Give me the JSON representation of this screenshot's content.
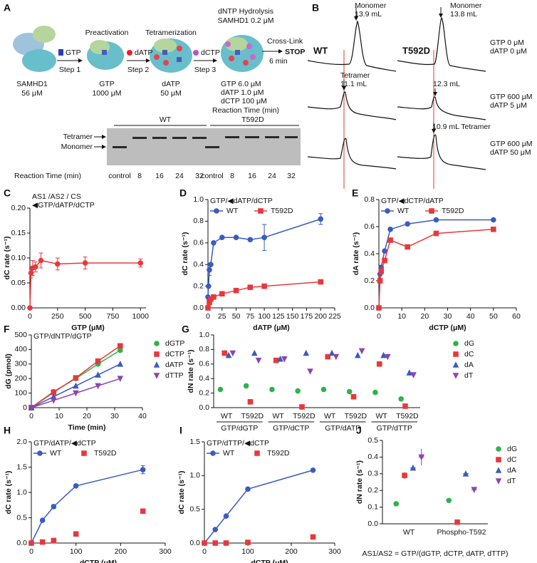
{
  "panel_a": {
    "label": "A",
    "protein": "SAMHD1",
    "protein_conc": "56 μM",
    "reagents": [
      "GTP",
      "dATP",
      "dCTP"
    ],
    "steps": [
      "Step 1",
      "Step 2",
      "Step 3"
    ],
    "preactivation": {
      "title": "Preactivation",
      "line1": "GTP",
      "line2": "1000 μM"
    },
    "tetramerization": {
      "title": "Tetramerization",
      "line1": "dATP",
      "line2": "50 μM"
    },
    "hydrolysis": {
      "title": "dNTP Hydrolysis",
      "enzyme": "SAMHD1 0.2 μM",
      "conditions": [
        "GTP  6.0 μM",
        "dATP  1.0 μM",
        "dCTP  100 μM"
      ],
      "time": "Reaction Time (min)"
    },
    "crosslink": "Cross-Link",
    "crosslink_time": "6 min",
    "stop": "STOP",
    "gel": {
      "groups": [
        "WT",
        "T592D"
      ],
      "bands": [
        "Tetramer",
        "Monomer"
      ],
      "axis_title": "Reaction Time (min)",
      "lanes": [
        "control",
        "8",
        "16",
        "24",
        "32",
        "control",
        "8",
        "16",
        "24",
        "32"
      ]
    }
  },
  "panel_b": {
    "label": "B",
    "variants": [
      "WT",
      "T592D"
    ],
    "annotations": [
      "Monomer",
      "13.9 mL",
      "Monomer",
      "13.8 mL",
      "Tetramer",
      "11.1 mL",
      "12.3 mL",
      "10.9 mL Tetramer"
    ],
    "conditions": [
      [
        "GTP  0 μM",
        "dATP  0 μM"
      ],
      [
        "GTP 600  μM",
        "dATP   5  μM"
      ],
      [
        "GTP 600 μM",
        "dATP 50 μM"
      ]
    ]
  },
  "chart_data": [
    {
      "label": "C",
      "type": "line",
      "title": "AS1 /AS2 / CS",
      "subtitle": "◀GTP/dATP/dCTP",
      "xlabel": "GTP (μM)",
      "ylabel": "dC rate (s⁻¹)",
      "xlim": [
        0,
        1050
      ],
      "xticks": [
        0,
        250,
        500,
        750,
        1000
      ],
      "ylim": [
        0,
        0.2
      ],
      "yticks": [
        {
          "value": 0,
          "label": "0.00"
        },
        0.05,
        {
          "value": 0.1,
          "label": "0.10"
        },
        {
          "value": 0.15,
          "label": "0.15"
        },
        {
          "value": 0.2,
          "label": "0.20"
        }
      ],
      "series": [
        {
          "color": "#e8383d",
          "marker": "circle",
          "line": true,
          "x": [
            0,
            10,
            25,
            50,
            100,
            250,
            500,
            1000
          ],
          "values": [
            0,
            0.07,
            0.08,
            0.082,
            0.095,
            0.088,
            0.09,
            0.09
          ],
          "errors": [
            null,
            0.01,
            0.015,
            0.01,
            0.015,
            0.012,
            0.012,
            0.008
          ]
        }
      ]
    },
    {
      "label": "D",
      "type": "line",
      "title": "GTP/◀dATP/dCTP",
      "legend": "top-left",
      "xlabel": "dATP (μM)",
      "ylabel": "dC rate (s⁻¹)",
      "xlim": [
        0,
        225
      ],
      "xticks": [
        0,
        25,
        50,
        75,
        100,
        125,
        150,
        175,
        200,
        225
      ],
      "ylim": [
        0,
        1.0
      ],
      "yticks": [
        {
          "value": 0,
          "label": "0.0"
        },
        0.2,
        0.4,
        0.6,
        0.8,
        {
          "value": 1.0,
          "label": "1.0"
        }
      ],
      "series": [
        {
          "name": "WT",
          "color": "#3a5bbf",
          "marker": "circle",
          "line": true,
          "x": [
            0,
            1,
            2.5,
            5,
            10,
            25,
            50,
            75,
            100,
            200
          ],
          "values": [
            0.1,
            0.2,
            0.35,
            0.4,
            0.6,
            0.65,
            0.65,
            0.63,
            0.65,
            0.82
          ],
          "errors": [
            null,
            null,
            0.05,
            null,
            null,
            null,
            null,
            null,
            0.12,
            0.05
          ]
        },
        {
          "name": "T592D",
          "color": "#e8383d",
          "marker": "square",
          "line": true,
          "x": [
            0,
            2.5,
            5,
            10,
            25,
            50,
            75,
            100,
            200
          ],
          "values": [
            0,
            0.05,
            0.08,
            0.1,
            0.13,
            0.16,
            0.19,
            0.2,
            0.24
          ]
        }
      ]
    },
    {
      "label": "E",
      "type": "line",
      "title": "GTP/◀dCTP/dATP",
      "legend": "top-left",
      "xlabel": "dCTP (μM)",
      "ylabel": "dA rate (s⁻¹)",
      "xlim": [
        0,
        60
      ],
      "xticks": [
        0,
        10,
        20,
        30,
        40,
        50,
        60
      ],
      "ylim": [
        0,
        0.8
      ],
      "yticks": [
        {
          "value": 0,
          "label": "0.0"
        },
        0.2,
        0.4,
        0.6,
        0.8
      ],
      "series": [
        {
          "name": "WT",
          "color": "#3a5bbf",
          "marker": "circle",
          "line": true,
          "x": [
            0,
            0.5,
            1,
            2.5,
            5,
            12.5,
            25,
            50
          ],
          "values": [
            0,
            0.25,
            0.3,
            0.42,
            0.58,
            0.62,
            0.65,
            0.65
          ]
        },
        {
          "name": "T592D",
          "color": "#e8383d",
          "marker": "square",
          "line": true,
          "x": [
            0,
            0.5,
            1,
            2.5,
            5,
            12.5,
            25,
            50
          ],
          "values": [
            0,
            0.2,
            0.27,
            0.35,
            0.5,
            0.45,
            0.55,
            0.58
          ]
        }
      ]
    },
    {
      "label": "F",
      "type": "line",
      "title": "GTP/dNTP/dGTP",
      "legend": "right",
      "xlabel": "Time (min)",
      "ylabel": "dG (pmol)",
      "xlim": [
        0,
        40
      ],
      "xticks": [
        0,
        10,
        20,
        30,
        40
      ],
      "ylim": [
        0,
        500
      ],
      "yticks": [
        0,
        100,
        200,
        300,
        400,
        500
      ],
      "series": [
        {
          "name": "dGTP",
          "color": "#2db34a",
          "marker": "circle",
          "line": true,
          "x": [
            0,
            8,
            16,
            24,
            32
          ],
          "values": [
            0,
            110,
            200,
            300,
            395
          ]
        },
        {
          "name": "dCTP",
          "color": "#e8383d",
          "marker": "square",
          "line": true,
          "x": [
            0,
            8,
            16,
            24,
            32
          ],
          "values": [
            0,
            105,
            205,
            320,
            425
          ]
        },
        {
          "name": "dATP",
          "color": "#3a5bbf",
          "marker": "triangle",
          "line": true,
          "x": [
            0,
            8,
            16,
            24,
            32
          ],
          "values": [
            0,
            75,
            150,
            225,
            300
          ]
        },
        {
          "name": "dTTP",
          "color": "#8e44ad",
          "marker": "tri-down",
          "line": true,
          "x": [
            0,
            8,
            16,
            24,
            32
          ],
          "values": [
            0,
            50,
            100,
            150,
            200
          ]
        }
      ]
    },
    {
      "label": "G",
      "type": "dot",
      "legend": "right",
      "ylabel": "dN rate (s⁻¹)",
      "categories": [
        "WT",
        "T592D",
        "WT",
        "T592D",
        "WT",
        "T592D",
        "WT",
        "T592D"
      ],
      "groups": [
        "GTP/dGTP",
        "GTP/dCTP",
        "GTP/dATP",
        "GTP/dTTP"
      ],
      "ylim": [
        0,
        1.0
      ],
      "yticks": [
        {
          "value": 0,
          "label": "0.0"
        },
        0.2,
        0.4,
        0.6,
        0.8,
        {
          "value": 1.0,
          "label": "1.0"
        }
      ],
      "series": [
        {
          "name": "dG",
          "color": "#2db34a",
          "marker": "circle",
          "values": [
            0.25,
            0.3,
            0.25,
            0.23,
            0.25,
            0.22,
            0.21,
            0.12
          ]
        },
        {
          "name": "dC",
          "color": "#e8383d",
          "marker": "square",
          "values": [
            0.75,
            0.08,
            0.65,
            0.01,
            0.7,
            0.15,
            0.6,
            0.02
          ]
        },
        {
          "name": "dA",
          "color": "#3a5bbf",
          "marker": "triangle",
          "values": [
            0.72,
            0.75,
            0.67,
            0.75,
            0.75,
            0.72,
            0.72,
            0.48
          ]
        },
        {
          "name": "dT",
          "color": "#8e44ad",
          "marker": "tri-down",
          "values": [
            0.75,
            0.65,
            0.67,
            0.5,
            0.7,
            0.78,
            0.7,
            0.45
          ]
        }
      ]
    },
    {
      "label": "H",
      "type": "line",
      "title": "GTP/dATP/◀dCTP",
      "legend": "top-left",
      "xlabel": "dCTP (μM)",
      "ylabel": "dC rate (s⁻¹)",
      "xlim": [
        0,
        300
      ],
      "xticks": [
        0,
        100,
        200,
        300
      ],
      "ylim": [
        0,
        2.0
      ],
      "yticks": [
        {
          "value": 0,
          "label": "0.0"
        },
        0.5,
        {
          "value": 1.0,
          "label": "1.0"
        },
        1.5,
        {
          "value": 2.0,
          "label": "2.0"
        }
      ],
      "series": [
        {
          "name": "WT",
          "color": "#3a5bbf",
          "marker": "circle",
          "line": true,
          "x": [
            0,
            25,
            50,
            100,
            250
          ],
          "values": [
            0,
            0.45,
            0.72,
            1.13,
            1.45
          ],
          "errors": [
            null,
            null,
            0.04,
            null,
            0.08
          ]
        },
        {
          "name": "T592D",
          "color": "#e8383d",
          "marker": "square",
          "line": false,
          "x": [
            0,
            25,
            50,
            100,
            250
          ],
          "values": [
            0,
            0.02,
            0.05,
            0.18,
            0.63
          ]
        }
      ]
    },
    {
      "label": "I",
      "type": "line",
      "title": "GTP/dTTP/◀dCTP",
      "legend": "top-left",
      "xlabel": "dCTP (μM)",
      "ylabel": "dC rate (s⁻¹)",
      "xlim": [
        0,
        300
      ],
      "xticks": [
        0,
        100,
        200,
        300
      ],
      "ylim": [
        0,
        1.5
      ],
      "yticks": [
        {
          "value": 0,
          "label": "0.0"
        },
        0.5,
        {
          "value": 1.0,
          "label": "1.0"
        },
        1.5
      ],
      "series": [
        {
          "name": "WT",
          "color": "#3a5bbf",
          "marker": "circle",
          "line": true,
          "x": [
            0,
            25,
            50,
            100,
            250
          ],
          "values": [
            0,
            0.2,
            0.4,
            0.8,
            1.08
          ]
        },
        {
          "name": "T592D",
          "color": "#e8383d",
          "marker": "square",
          "line": false,
          "x": [
            0,
            25,
            50,
            100,
            250
          ],
          "values": [
            0,
            0,
            0,
            0.01,
            0.09
          ]
        }
      ]
    },
    {
      "label": "J",
      "type": "dot",
      "legend": "right",
      "ylabel": "dN rate (s⁻¹)",
      "categories": [
        "WT",
        "Phospho-T592"
      ],
      "footer": "AS1/AS2 = GTP/(dGTP, dCTP, dATP, dTTP)",
      "ylim": [
        0,
        0.5
      ],
      "yticks": [
        {
          "value": 0,
          "label": "0.0"
        },
        0.1,
        0.2,
        0.3,
        0.4,
        0.5
      ],
      "series": [
        {
          "name": "dG",
          "color": "#2db34a",
          "marker": "circle",
          "values": [
            0.12,
            0.14
          ],
          "errors": [
            0.01,
            0.005
          ]
        },
        {
          "name": "dC",
          "color": "#e8383d",
          "marker": "square",
          "values": [
            0.29,
            0.01
          ],
          "errors": [
            0.02,
            0.005
          ]
        },
        {
          "name": "dA",
          "color": "#3a5bbf",
          "marker": "triangle",
          "values": [
            0.335,
            0.3
          ],
          "errors": [
            0.01,
            0.015
          ]
        },
        {
          "name": "dT",
          "color": "#8e44ad",
          "marker": "tri-down",
          "values": [
            0.4,
            0.205
          ],
          "errors": [
            0.05,
            0.015
          ]
        }
      ]
    }
  ]
}
